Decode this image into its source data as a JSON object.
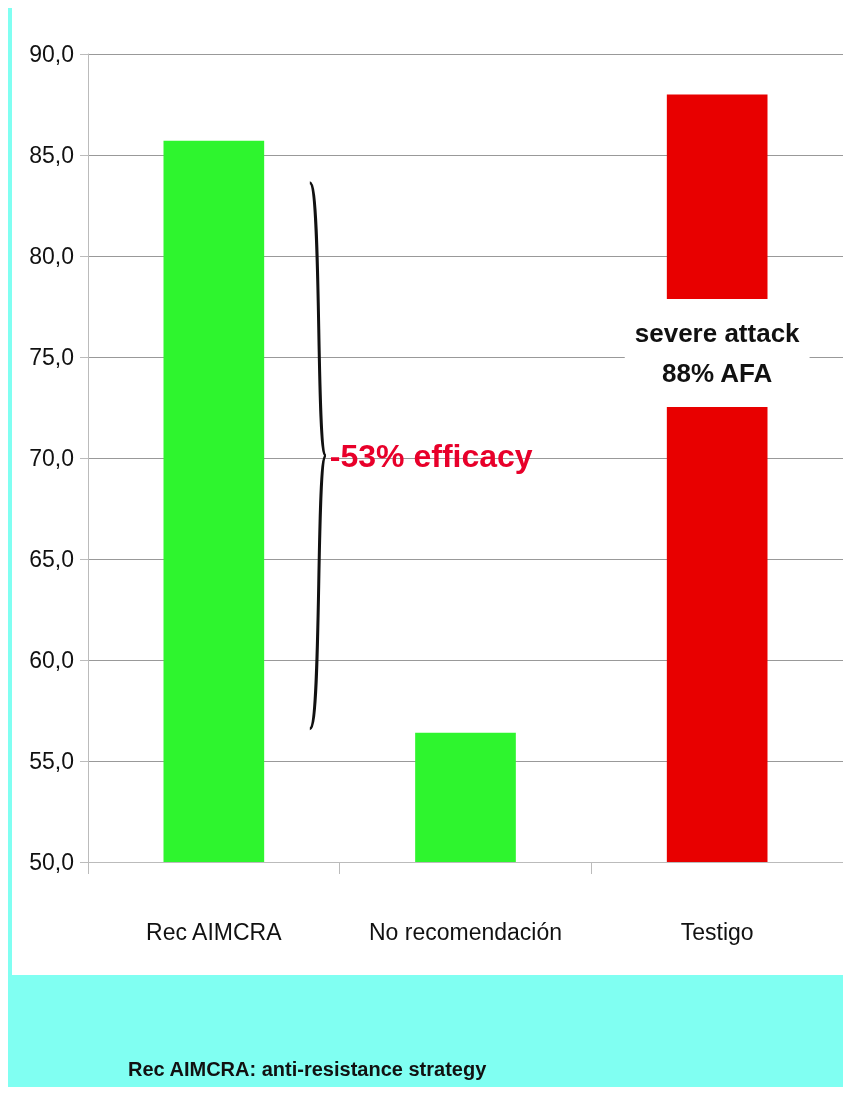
{
  "chart_data": {
    "type": "bar",
    "categories": [
      "Rec AIMCRA",
      "No recomendación",
      "Testigo"
    ],
    "values": [
      85.7,
      56.4,
      88.0
    ],
    "colors": [
      "#2ef52e",
      "#2ef52e",
      "#e80000"
    ],
    "ylim": [
      50,
      90
    ],
    "yticks": [
      {
        "value": 50,
        "label": "50,0"
      },
      {
        "value": 55,
        "label": "55,0"
      },
      {
        "value": 60,
        "label": "60,0"
      },
      {
        "value": 65,
        "label": "65,0"
      },
      {
        "value": 70,
        "label": "70,0"
      },
      {
        "value": 75,
        "label": "75,0"
      },
      {
        "value": 80,
        "label": "80,0"
      },
      {
        "value": 85,
        "label": "85,0"
      },
      {
        "value": 90,
        "label": "90,0"
      }
    ],
    "grid": "y",
    "annotations": [
      "-53% efficacy",
      "severe attack\n88% AFA",
      "Rec AIMCRA: anti-resistance strategy"
    ]
  }
}
